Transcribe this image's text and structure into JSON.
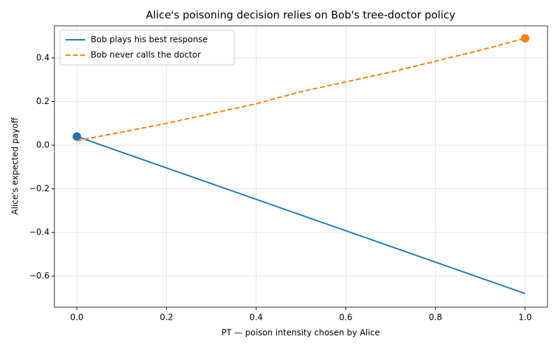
{
  "chart_data": {
    "type": "line",
    "title": "Alice's poisoning decision relies on Bob's tree-doctor policy",
    "x_label": "PT — poison intensity chosen by Alice",
    "y_label": "Alice's expected payoff",
    "x": [
      0,
      0.1,
      0.2,
      0.3,
      0.4,
      0.5,
      0.6,
      0.7,
      0.8,
      0.9,
      1.0
    ],
    "series": [
      {
        "name": "Bob plays his best response",
        "color": "#1f77b4",
        "dash": "solid",
        "values": [
          0.04,
          -0.032,
          -0.104,
          -0.176,
          -0.248,
          -0.32,
          -0.392,
          -0.464,
          -0.536,
          -0.608,
          -0.68
        ],
        "markers": [
          {
            "x": 0,
            "y": 0.04
          }
        ]
      },
      {
        "name": "Bob never calls the doctor",
        "color": "#ff7f0e",
        "dash": "dashed",
        "values": [
          0.02,
          0.06,
          0.1,
          0.145,
          0.19,
          0.245,
          0.29,
          0.335,
          0.385,
          0.435,
          0.49
        ],
        "markers": [
          {
            "x": 1.0,
            "y": 0.49
          }
        ]
      }
    ],
    "xlim": [
      -0.05,
      1.05
    ],
    "ylim": [
      -0.742,
      0.547
    ],
    "xticks": [
      {
        "value": 0,
        "label": "0.0"
      },
      {
        "value": 0.2,
        "label": "0.2"
      },
      {
        "value": 0.4,
        "label": "0.4"
      },
      {
        "value": 0.6,
        "label": "0.6"
      },
      {
        "value": 0.8,
        "label": "0.8"
      },
      {
        "value": 1.0,
        "label": "1.0"
      }
    ],
    "yticks": [
      {
        "value": -0.6,
        "label": "−0.6"
      },
      {
        "value": -0.4,
        "label": "−0.4"
      },
      {
        "value": -0.2,
        "label": "−0.2"
      },
      {
        "value": 0,
        "label": "0.0"
      },
      {
        "value": 0.2,
        "label": "0.2"
      },
      {
        "value": 0.4,
        "label": "0.4"
      }
    ],
    "grid": true,
    "legend": "upper-left"
  }
}
